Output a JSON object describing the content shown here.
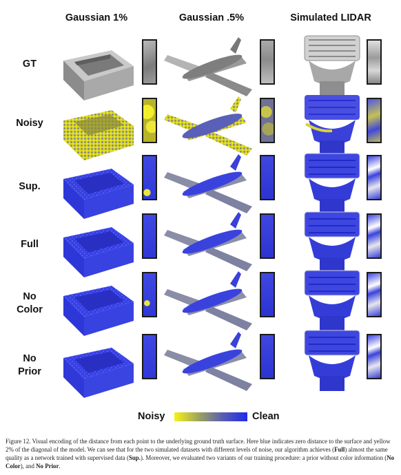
{
  "columns": [
    "Gaussian 1%",
    "Gaussian .5%",
    "Simulated LIDAR"
  ],
  "rows": [
    {
      "label": "GT"
    },
    {
      "label": "Noisy"
    },
    {
      "label": "Sup."
    },
    {
      "label": "Full"
    },
    {
      "label": "No\nColor"
    },
    {
      "label": "No\nPrior"
    }
  ],
  "legend": {
    "left": "Noisy",
    "right": "Clean",
    "colors": {
      "noisy": "#f6f21a",
      "clean": "#1f2bea"
    }
  },
  "caption": {
    "p1": "Figure 12. Visual encoding of the distance from each point to the underlying ground truth surface. Here blue indicates zero distance to the surface and yellow 2% of the diagonal of the model. We can see that for the two simulated datasets with different levels of noise, our algorithm achieves (",
    "b1": "Full",
    "p2": ") almost the same quality as a network trained with supervised data (",
    "b2": "Sup.",
    "p3": "). Moreover, we evaluated two variants of our training procedure: a prior without color information (",
    "b3": "No Color",
    "p4": "), and ",
    "b4": "No Prior",
    "p5": "."
  }
}
